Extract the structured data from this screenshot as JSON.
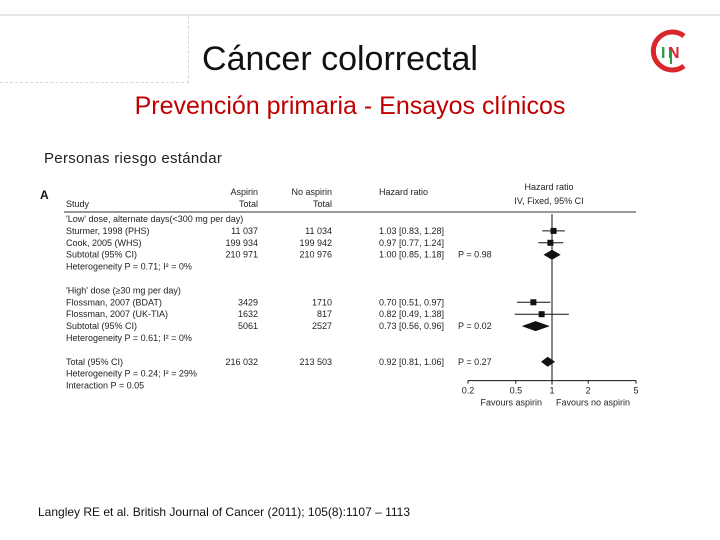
{
  "slide": {
    "title": "Cáncer colorrectal",
    "subtitle": "Prevención primaria - Ensayos clínicos",
    "section_label": "Personas riesgo estándar",
    "citation": "Langley RE et al. British Journal of Cancer (2011); 105(8):1107 – 1113",
    "logo_text": "IN",
    "colors": {
      "title": "#111111",
      "subtitle": "#c00000",
      "logo_red": "#d9262b",
      "logo_green": "#2e9a47"
    }
  },
  "chart_data": {
    "type": "forest",
    "panel_label": "A",
    "headers": {
      "study": "Study",
      "aspirin": "Aspirin",
      "aspirin_sub": "Total",
      "no_aspirin": "No aspirin",
      "no_aspirin_sub": "Total",
      "hazard_ratio": "Hazard ratio",
      "hr_plot_title": "Hazard ratio",
      "hr_plot_sub": "IV, Fixed, 95% CI"
    },
    "rows": [
      {
        "kind": "group",
        "label": "'Low' dose, alternate days(<300 mg per day)"
      },
      {
        "kind": "study",
        "label": "Sturmer, 1998 (PHS)",
        "aspirin": "11 037",
        "no_aspirin": "11 034",
        "hr_text": "1.03 [0.83, 1.28]",
        "hr": 1.03,
        "lo": 0.83,
        "hi": 1.28
      },
      {
        "kind": "study",
        "label": "Cook, 2005 (WHS)",
        "aspirin": "199 934",
        "no_aspirin": "199 942",
        "hr_text": "0.97 [0.77, 1.24]",
        "hr": 0.97,
        "lo": 0.77,
        "hi": 1.24
      },
      {
        "kind": "subtotal",
        "label": "Subtotal (95% CI)",
        "aspirin": "210 971",
        "no_aspirin": "210 976",
        "hr_text": "1.00 [0.85, 1.18]",
        "p_text": "P = 0.98",
        "hr": 1.0,
        "lo": 0.85,
        "hi": 1.18
      },
      {
        "kind": "het",
        "label": "Heterogeneity  P = 0.71;  I² = 0%"
      },
      {
        "kind": "spacer"
      },
      {
        "kind": "group",
        "label": "'High' dose (≥30 mg per day)"
      },
      {
        "kind": "study",
        "label": "Flossman, 2007 (BDAT)",
        "aspirin": "3429",
        "no_aspirin": "1710",
        "hr_text": "0.70 [0.51, 0.97]",
        "hr": 0.7,
        "lo": 0.51,
        "hi": 0.97
      },
      {
        "kind": "study",
        "label": "Flossman, 2007 (UK-TIA)",
        "aspirin": "1632",
        "no_aspirin": "817",
        "hr_text": "0.82 [0.49, 1.38]",
        "hr": 0.82,
        "lo": 0.49,
        "hi": 1.38
      },
      {
        "kind": "subtotal",
        "label": "Subtotal (95% CI)",
        "aspirin": "5061",
        "no_aspirin": "2527",
        "hr_text": "0.73 [0.56, 0.96]",
        "p_text": "P = 0.02",
        "hr": 0.73,
        "lo": 0.56,
        "hi": 0.96
      },
      {
        "kind": "het",
        "label": "Heterogeneity  P = 0.61;  I² = 0%"
      },
      {
        "kind": "spacer"
      },
      {
        "kind": "total",
        "label": "Total (95% CI)",
        "aspirin": "216 032",
        "no_aspirin": "213 503",
        "hr_text": "0.92 [0.81, 1.06]",
        "p_text": "P = 0.27",
        "hr": 0.92,
        "lo": 0.81,
        "hi": 1.06
      },
      {
        "kind": "het",
        "label": "Heterogeneity  P = 0.24;  I² = 29%"
      },
      {
        "kind": "het",
        "label": "Interaction  P = 0.05"
      }
    ],
    "x_scale": "log",
    "x_ticks": [
      0.2,
      0.5,
      1,
      2,
      5
    ],
    "x_tick_labels": [
      "0.2",
      "0.5",
      "1",
      "2",
      "5"
    ],
    "x_range": [
      0.2,
      5
    ],
    "favours_left": "Favours aspirin",
    "favours_right": "Favours no aspirin"
  }
}
